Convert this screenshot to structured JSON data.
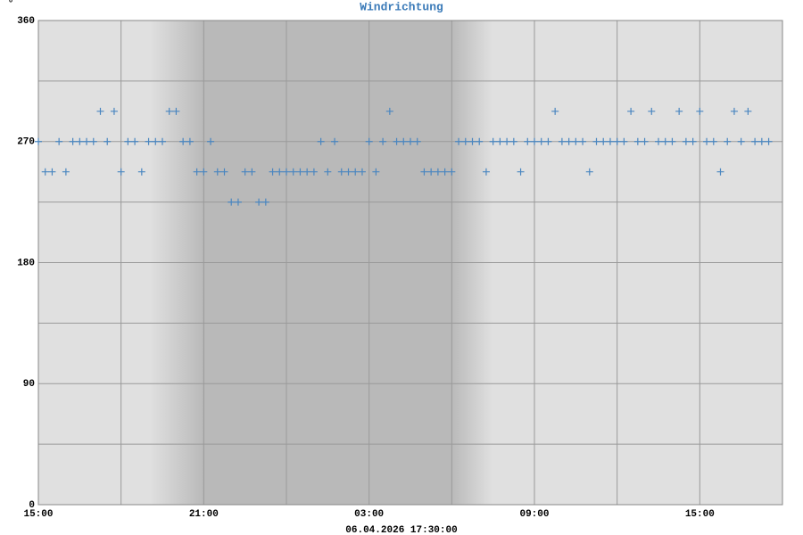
{
  "chart_data": {
    "type": "scatter",
    "title": "Windrichtung",
    "ylabel": "°",
    "xlabel": "06.04.2026 17:30:00",
    "x": [
      0,
      15,
      30,
      45,
      60,
      75,
      90,
      105,
      120,
      135,
      150,
      165,
      180,
      195,
      210,
      225,
      240,
      255,
      270,
      285,
      300,
      315,
      330,
      345,
      360,
      375,
      390,
      405,
      420,
      435,
      450,
      465,
      480,
      495,
      510,
      525,
      540,
      555,
      570,
      585,
      600,
      615,
      630,
      645,
      660,
      675,
      690,
      705,
      720,
      735,
      750,
      765,
      780,
      795,
      810,
      825,
      840,
      855,
      870,
      885,
      900,
      915,
      930,
      945,
      960,
      975,
      990,
      1005,
      1020,
      1035,
      1050,
      1065,
      1080,
      1095,
      1110,
      1125,
      1140,
      1155,
      1170,
      1185,
      1200,
      1215,
      1230,
      1245,
      1260,
      1275,
      1290,
      1305,
      1320,
      1335,
      1350,
      1365,
      1380,
      1395,
      1410,
      1425,
      1440,
      1455,
      1470,
      1485,
      1500,
      1515,
      1530,
      1545,
      1560,
      1575,
      1590
    ],
    "series": [
      {
        "color": "#4a86c0",
        "values": [
          270,
          247.5,
          247.5,
          270,
          247.5,
          270,
          270,
          270,
          270,
          292.5,
          270,
          292.5,
          247.5,
          270,
          270,
          247.5,
          270,
          270,
          270,
          292.5,
          292.5,
          270,
          270,
          247.5,
          247.5,
          270,
          247.5,
          247.5,
          225,
          225,
          247.5,
          247.5,
          225,
          225,
          247.5,
          247.5,
          247.5,
          247.5,
          247.5,
          247.5,
          247.5,
          270,
          247.5,
          270,
          247.5,
          247.5,
          247.5,
          247.5,
          270,
          247.5,
          270,
          292.5,
          270,
          270,
          270,
          270,
          247.5,
          247.5,
          247.5,
          247.5,
          247.5,
          270,
          270,
          270,
          270,
          247.5,
          270,
          270,
          270,
          270,
          247.5,
          270,
          270,
          270,
          270,
          292.5,
          270,
          270,
          270,
          270,
          247.5,
          270,
          270,
          270,
          270,
          270,
          292.5,
          270,
          270,
          292.5,
          270,
          270,
          270,
          292.5,
          270,
          270,
          292.5,
          270,
          270,
          247.5,
          270,
          292.5,
          270,
          292.5,
          270,
          270,
          270
        ]
      }
    ],
    "xlim": [
      0,
      1620
    ],
    "xticks": [
      {
        "value": 0,
        "label": "15:00"
      },
      {
        "value": 360,
        "label": "21:00"
      },
      {
        "value": 720,
        "label": "03:00"
      },
      {
        "value": 1080,
        "label": "09:00"
      },
      {
        "value": 1440,
        "label": "15:00"
      }
    ],
    "x_minor_ticks": [
      180,
      540,
      900,
      1260
    ],
    "ylim": [
      0,
      360
    ],
    "yticks": [
      0,
      90,
      180,
      270,
      360
    ],
    "y_minor_ticks": [
      45,
      135,
      225,
      315
    ],
    "grid": true
  }
}
